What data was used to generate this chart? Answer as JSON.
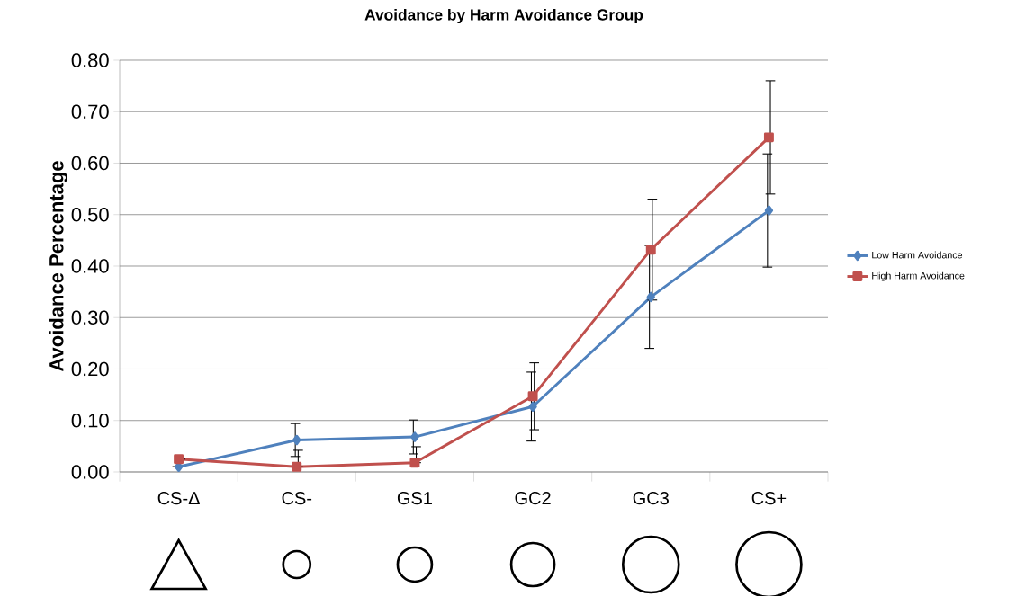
{
  "chart_data": {
    "type": "line",
    "title": "Avoidance by Harm Avoidance Group",
    "ylabel": "Avoidance Percentage",
    "categories": [
      "CS-Δ",
      "CS-",
      "GS1",
      "GC2",
      "GC3",
      "CS+"
    ],
    "series": [
      {
        "name": "Low Harm Avoidance",
        "color": "#4f81bd",
        "marker": "diamond",
        "values": [
          0.01,
          0.062,
          0.068,
          0.127,
          0.34,
          0.508
        ],
        "errors": [
          null,
          0.032,
          0.033,
          0.067,
          0.1,
          0.11
        ]
      },
      {
        "name": "High Harm Avoidance",
        "color": "#c0504d",
        "marker": "square",
        "values": [
          0.025,
          0.01,
          0.018,
          0.147,
          0.432,
          0.65
        ],
        "errors": [
          null,
          [
            0.01,
            0.042
          ],
          [
            0.018,
            0.049
          ],
          0.065,
          0.098,
          0.11
        ]
      }
    ],
    "ylim": [
      0,
      0.8
    ],
    "yticks": [
      {
        "value": 0,
        "label": "0.00"
      },
      {
        "value": 0.1,
        "label": "0.10"
      },
      {
        "value": 0.2,
        "label": "0.20"
      },
      {
        "value": 0.3,
        "label": "0.30"
      },
      {
        "value": 0.4,
        "label": "0.40"
      },
      {
        "value": 0.5,
        "label": "0.50"
      },
      {
        "value": 0.6,
        "label": "0.60"
      },
      {
        "value": 0.7,
        "label": "0.70"
      },
      {
        "value": 0.8,
        "label": "0.80"
      }
    ],
    "grid": "y",
    "legend": "right"
  }
}
